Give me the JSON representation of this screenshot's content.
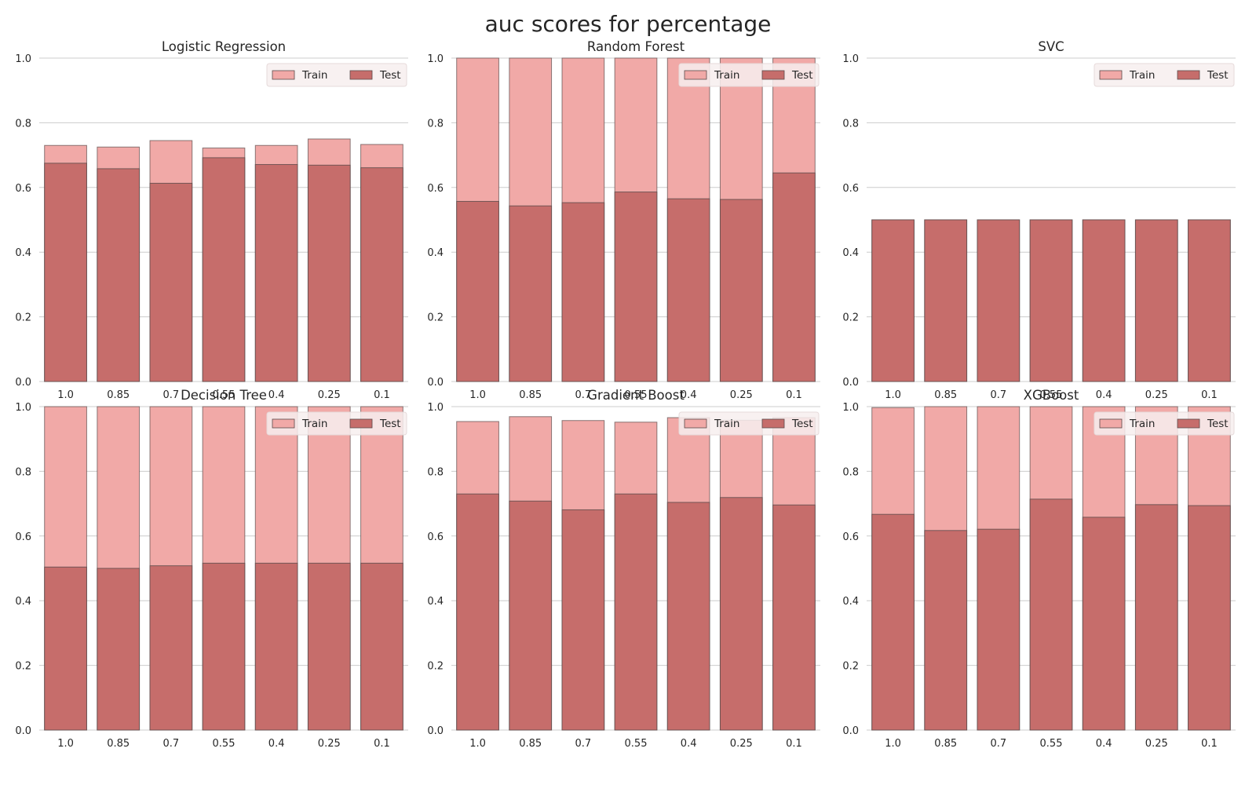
{
  "figure": {
    "title": "auc scores for percentage"
  },
  "colors": {
    "train": "#f1a9a7",
    "test": "#c66d6b",
    "bar_edge": "#5a4a4a",
    "grid": "#cccccc",
    "tick_text": "#262626",
    "legend_bg": "#f7eeee"
  },
  "legend": {
    "train_label": "Train",
    "test_label": "Test"
  },
  "chart_data": [
    {
      "type": "bar",
      "title": "Logistic Regression",
      "categories": [
        "1.0",
        "0.85",
        "0.7",
        "0.55",
        "0.4",
        "0.25",
        "0.1"
      ],
      "series": [
        {
          "name": "Train",
          "values": [
            0.73,
            0.725,
            0.745,
            0.722,
            0.73,
            0.75,
            0.733
          ]
        },
        {
          "name": "Test",
          "values": [
            0.675,
            0.658,
            0.613,
            0.692,
            0.671,
            0.669,
            0.661
          ]
        }
      ],
      "ylim": [
        0,
        1.0
      ],
      "yticks": [
        "0.0",
        "0.2",
        "0.4",
        "0.6",
        "0.8",
        "1.0"
      ],
      "legend_position": "upper right",
      "grid": true
    },
    {
      "type": "bar",
      "title": "Random Forest",
      "categories": [
        "1.0",
        "0.85",
        "0.7",
        "0.55",
        "0.4",
        "0.25",
        "0.1"
      ],
      "series": [
        {
          "name": "Train",
          "values": [
            1.0,
            1.0,
            1.0,
            1.0,
            1.0,
            1.0,
            1.0
          ]
        },
        {
          "name": "Test",
          "values": [
            0.557,
            0.543,
            0.553,
            0.586,
            0.565,
            0.563,
            0.645
          ]
        }
      ],
      "ylim": [
        0,
        1.0
      ],
      "yticks": [
        "0.0",
        "0.2",
        "0.4",
        "0.6",
        "0.8",
        "1.0"
      ],
      "legend_position": "upper right",
      "grid": true
    },
    {
      "type": "bar",
      "title": "SVC",
      "categories": [
        "1.0",
        "0.85",
        "0.7",
        "0.55",
        "0.4",
        "0.25",
        "0.1"
      ],
      "series": [
        {
          "name": "Train",
          "values": [
            0.5,
            0.5,
            0.5,
            0.5,
            0.5,
            0.5,
            0.5
          ]
        },
        {
          "name": "Test",
          "values": [
            0.5,
            0.5,
            0.5,
            0.5,
            0.5,
            0.5,
            0.5
          ]
        }
      ],
      "ylim": [
        0,
        1.0
      ],
      "yticks": [
        "0.0",
        "0.2",
        "0.4",
        "0.6",
        "0.8",
        "1.0"
      ],
      "legend_position": "upper right",
      "grid": true
    },
    {
      "type": "bar",
      "title": "Decision Tree",
      "categories": [
        "1.0",
        "0.85",
        "0.7",
        "0.55",
        "0.4",
        "0.25",
        "0.1"
      ],
      "series": [
        {
          "name": "Train",
          "values": [
            1.0,
            1.0,
            1.0,
            1.0,
            1.0,
            1.0,
            1.0
          ]
        },
        {
          "name": "Test",
          "values": [
            0.504,
            0.5,
            0.508,
            0.516,
            0.516,
            0.516,
            0.516
          ]
        }
      ],
      "ylim": [
        0,
        1.0
      ],
      "yticks": [
        "0.0",
        "0.2",
        "0.4",
        "0.6",
        "0.8",
        "1.0"
      ],
      "legend_position": "upper right",
      "grid": true
    },
    {
      "type": "bar",
      "title": "Gradient Boost",
      "categories": [
        "1.0",
        "0.85",
        "0.7",
        "0.55",
        "0.4",
        "0.25",
        "0.1"
      ],
      "series": [
        {
          "name": "Train",
          "values": [
            0.954,
            0.969,
            0.957,
            0.952,
            0.966,
            0.958,
            0.966
          ]
        },
        {
          "name": "Test",
          "values": [
            0.73,
            0.708,
            0.681,
            0.73,
            0.704,
            0.719,
            0.696
          ]
        }
      ],
      "ylim": [
        0,
        1.0
      ],
      "yticks": [
        "0.0",
        "0.2",
        "0.4",
        "0.6",
        "0.8",
        "1.0"
      ],
      "legend_position": "upper right",
      "grid": true
    },
    {
      "type": "bar",
      "title": "XGBoost",
      "categories": [
        "1.0",
        "0.85",
        "0.7",
        "0.55",
        "0.4",
        "0.25",
        "0.1"
      ],
      "series": [
        {
          "name": "Train",
          "values": [
            0.997,
            1.0,
            1.0,
            1.0,
            1.0,
            1.0,
            1.0
          ]
        },
        {
          "name": "Test",
          "values": [
            0.667,
            0.617,
            0.621,
            0.714,
            0.658,
            0.697,
            0.694
          ]
        }
      ],
      "ylim": [
        0,
        1.0
      ],
      "yticks": [
        "0.0",
        "0.2",
        "0.4",
        "0.6",
        "0.8",
        "1.0"
      ],
      "legend_position": "upper right",
      "grid": true
    }
  ]
}
